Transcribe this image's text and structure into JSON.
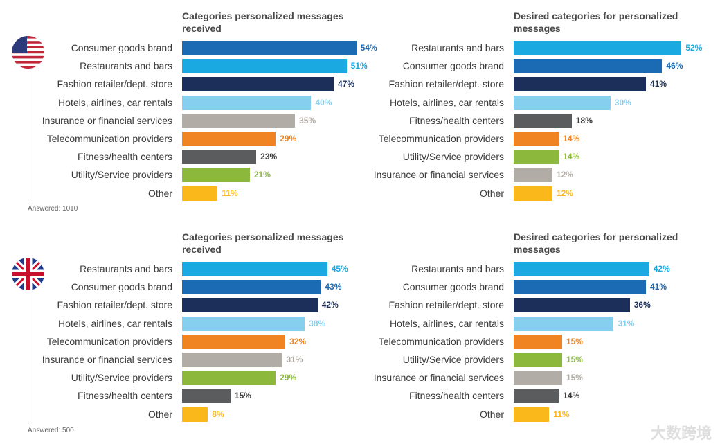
{
  "colors": {
    "Consumer goods brand": "#1b6ab4",
    "Restaurants and bars": "#1ba9e1",
    "Fashion retailer/dept. store": "#1c2f5a",
    "Hotels, airlines, car rentals": "#87cfee",
    "Insurance or financial services": "#b2aca6",
    "Telecommunication providers": "#f08423",
    "Fitness/health centers": "#5a5c5e",
    "Utility/Service providers": "#8cb83c",
    "Other": "#fbb81a"
  },
  "valueColors": {
    "Consumer goods brand": "#1b6ab4",
    "Restaurants and bars": "#1ba9e1",
    "Fashion retailer/dept. store": "#1c2f5a",
    "Hotels, airlines, car rentals": "#87cfee",
    "Insurance or financial services": "#b2aca6",
    "Telecommunication providers": "#f08423",
    "Fitness/health centers": "#3a3a3a",
    "Utility/Service providers": "#8cb83c",
    "Other": "#fbb81a"
  },
  "us": {
    "note": "Answered: 1010",
    "flag": "us-flag-icon"
  },
  "uk": {
    "note": "Answered: 500",
    "flag": "uk-flag-icon"
  },
  "watermark": "大数跨境",
  "chart_data": [
    {
      "type": "bar",
      "country": "US",
      "title": "Categories personalized messages received",
      "categories": [
        "Consumer goods brand",
        "Restaurants and bars",
        "Fashion retailer/dept. store",
        "Hotels, airlines, car rentals",
        "Insurance or financial services",
        "Telecommunication providers",
        "Fitness/health centers",
        "Utility/Service providers",
        "Other"
      ],
      "values": [
        54,
        51,
        47,
        40,
        35,
        29,
        23,
        21,
        11
      ],
      "unit": "%"
    },
    {
      "type": "bar",
      "country": "US",
      "title": "Desired categories for personalized messages",
      "categories": [
        "Restaurants and bars",
        "Consumer goods brand",
        "Fashion retailer/dept. store",
        "Hotels, airlines, car rentals",
        "Fitness/health centers",
        "Telecommunication providers",
        "Utility/Service providers",
        "Insurance or financial services",
        "Other"
      ],
      "values": [
        52,
        46,
        41,
        30,
        18,
        14,
        14,
        12,
        12
      ],
      "unit": "%"
    },
    {
      "type": "bar",
      "country": "UK",
      "title": "Categories personalized messages received",
      "categories": [
        "Restaurants and bars",
        "Consumer goods brand",
        "Fashion retailer/dept. store",
        "Hotels, airlines, car rentals",
        "Telecommunication providers",
        "Insurance or financial services",
        "Utility/Service providers",
        "Fitness/health centers",
        "Other"
      ],
      "values": [
        45,
        43,
        42,
        38,
        32,
        31,
        29,
        15,
        8
      ],
      "unit": "%"
    },
    {
      "type": "bar",
      "country": "UK",
      "title": "Desired categories for personalized messages",
      "categories": [
        "Restaurants and bars",
        "Consumer goods brand",
        "Fashion retailer/dept. store",
        "Hotels, airlines, car rentals",
        "Telecommunication providers",
        "Utility/Service providers",
        "Insurance or financial services",
        "Fitness/health centers",
        "Other"
      ],
      "values": [
        42,
        41,
        36,
        31,
        15,
        15,
        15,
        14,
        11
      ],
      "unit": "%"
    }
  ]
}
